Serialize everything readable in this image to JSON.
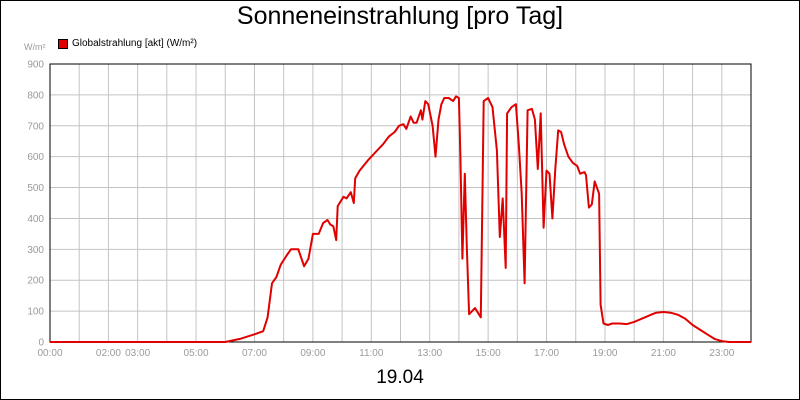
{
  "title": "Sonneneinstrahlung [pro Tag]",
  "unit_label": "W/m²",
  "legend": {
    "label": "Globalstrahlung [akt] (W/m²)",
    "color": "#e00000"
  },
  "date_label": "19.04",
  "chart_data": {
    "type": "line",
    "title": "Sonneneinstrahlung [pro Tag]",
    "ylabel": "W/m²",
    "xlabel": "",
    "xlim": [
      0,
      24
    ],
    "ylim": [
      0,
      900
    ],
    "grid": true,
    "legend_position": "top-left",
    "x_unit": "hours",
    "x_ticks": [
      {
        "x": 0,
        "label": "00:00"
      },
      {
        "x": 2,
        "label": "02:00"
      },
      {
        "x": 3,
        "label": "03:00"
      },
      {
        "x": 5,
        "label": "05:00"
      },
      {
        "x": 7,
        "label": "07:00"
      },
      {
        "x": 9,
        "label": "09:00"
      },
      {
        "x": 11,
        "label": "11:00"
      },
      {
        "x": 13,
        "label": "13:00"
      },
      {
        "x": 15,
        "label": "15:00"
      },
      {
        "x": 17,
        "label": "17:00"
      },
      {
        "x": 19,
        "label": "19:00"
      },
      {
        "x": 21,
        "label": "21:00"
      },
      {
        "x": 23,
        "label": "23:00"
      }
    ],
    "y_ticks": [
      0,
      100,
      200,
      300,
      400,
      500,
      600,
      700,
      800,
      900
    ],
    "series": [
      {
        "name": "Globalstrahlung [akt] (W/m²)",
        "color": "#e00000",
        "points": [
          [
            0,
            0
          ],
          [
            6.0,
            0
          ],
          [
            6.5,
            10
          ],
          [
            7.0,
            25
          ],
          [
            7.3,
            35
          ],
          [
            7.45,
            80
          ],
          [
            7.6,
            190
          ],
          [
            7.75,
            210
          ],
          [
            7.9,
            250
          ],
          [
            8.1,
            280
          ],
          [
            8.25,
            300
          ],
          [
            8.5,
            300
          ],
          [
            8.7,
            245
          ],
          [
            8.85,
            270
          ],
          [
            9.0,
            350
          ],
          [
            9.2,
            350
          ],
          [
            9.35,
            385
          ],
          [
            9.5,
            395
          ],
          [
            9.6,
            380
          ],
          [
            9.7,
            375
          ],
          [
            9.8,
            330
          ],
          [
            9.85,
            440
          ],
          [
            10.05,
            470
          ],
          [
            10.15,
            465
          ],
          [
            10.3,
            485
          ],
          [
            10.4,
            450
          ],
          [
            10.45,
            530
          ],
          [
            10.6,
            555
          ],
          [
            10.9,
            590
          ],
          [
            11.2,
            620
          ],
          [
            11.4,
            640
          ],
          [
            11.6,
            665
          ],
          [
            11.8,
            680
          ],
          [
            11.95,
            700
          ],
          [
            12.1,
            705
          ],
          [
            12.2,
            690
          ],
          [
            12.35,
            730
          ],
          [
            12.45,
            710
          ],
          [
            12.55,
            710
          ],
          [
            12.7,
            750
          ],
          [
            12.75,
            720
          ],
          [
            12.85,
            780
          ],
          [
            12.95,
            770
          ],
          [
            13.1,
            700
          ],
          [
            13.2,
            600
          ],
          [
            13.3,
            720
          ],
          [
            13.4,
            770
          ],
          [
            13.5,
            790
          ],
          [
            13.65,
            790
          ],
          [
            13.8,
            780
          ],
          [
            13.9,
            795
          ],
          [
            14.0,
            790
          ],
          [
            14.05,
            600
          ],
          [
            14.12,
            270
          ],
          [
            14.2,
            545
          ],
          [
            14.27,
            310
          ],
          [
            14.35,
            90
          ],
          [
            14.45,
            100
          ],
          [
            14.55,
            110
          ],
          [
            14.75,
            80
          ],
          [
            14.85,
            780
          ],
          [
            15.0,
            790
          ],
          [
            15.15,
            760
          ],
          [
            15.3,
            620
          ],
          [
            15.4,
            340
          ],
          [
            15.5,
            465
          ],
          [
            15.6,
            240
          ],
          [
            15.65,
            740
          ],
          [
            15.8,
            760
          ],
          [
            15.95,
            770
          ],
          [
            16.05,
            640
          ],
          [
            16.15,
            480
          ],
          [
            16.25,
            190
          ],
          [
            16.35,
            750
          ],
          [
            16.5,
            755
          ],
          [
            16.6,
            720
          ],
          [
            16.7,
            560
          ],
          [
            16.8,
            740
          ],
          [
            16.9,
            370
          ],
          [
            17.0,
            555
          ],
          [
            17.1,
            545
          ],
          [
            17.2,
            400
          ],
          [
            17.3,
            560
          ],
          [
            17.4,
            685
          ],
          [
            17.5,
            680
          ],
          [
            17.6,
            640
          ],
          [
            17.75,
            600
          ],
          [
            17.9,
            580
          ],
          [
            18.05,
            570
          ],
          [
            18.15,
            545
          ],
          [
            18.3,
            550
          ],
          [
            18.35,
            540
          ],
          [
            18.45,
            435
          ],
          [
            18.55,
            445
          ],
          [
            18.65,
            520
          ],
          [
            18.8,
            480
          ],
          [
            18.85,
            120
          ],
          [
            18.95,
            60
          ],
          [
            19.1,
            55
          ],
          [
            19.25,
            60
          ],
          [
            19.5,
            60
          ],
          [
            19.75,
            58
          ],
          [
            20.0,
            65
          ],
          [
            20.25,
            75
          ],
          [
            20.5,
            85
          ],
          [
            20.75,
            95
          ],
          [
            21.0,
            97
          ],
          [
            21.25,
            95
          ],
          [
            21.5,
            88
          ],
          [
            21.75,
            75
          ],
          [
            22.0,
            55
          ],
          [
            22.25,
            40
          ],
          [
            22.5,
            25
          ],
          [
            22.75,
            10
          ],
          [
            23.0,
            3
          ],
          [
            23.25,
            0
          ],
          [
            24.0,
            0
          ]
        ]
      }
    ]
  }
}
